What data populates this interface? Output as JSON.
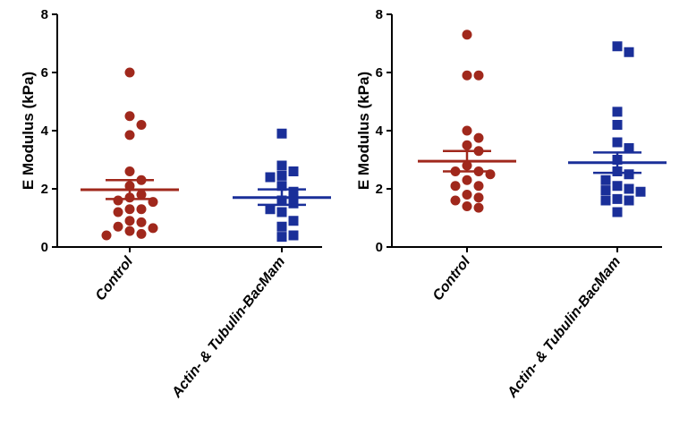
{
  "colors": {
    "control": "#a0281c",
    "treated": "#1a2f99"
  },
  "chart_data": [
    {
      "type": "scatter",
      "ylabel": "E Modulus (kPa)",
      "ylim": [
        0,
        8
      ],
      "yticks": [
        "0",
        "2",
        "4",
        "6",
        "8"
      ],
      "categories": [
        "Control",
        "Actin- & Tubulin-BacMam"
      ],
      "series": [
        {
          "name": "Control",
          "marker": "circle",
          "values": [
            6.0,
            4.5,
            4.2,
            3.85,
            2.6,
            2.3,
            2.1,
            1.8,
            1.7,
            1.6,
            1.55,
            1.3,
            1.3,
            1.2,
            0.9,
            0.85,
            0.7,
            0.65,
            0.55,
            0.45,
            0.4
          ],
          "mean": 1.97,
          "sem_upper": 2.3,
          "sem_lower": 1.65
        },
        {
          "name": "Actin- & Tubulin-BacMam",
          "marker": "square",
          "values": [
            3.9,
            2.8,
            2.6,
            2.45,
            2.4,
            2.1,
            1.9,
            1.6,
            1.5,
            1.3,
            1.2,
            0.9,
            0.7,
            0.4,
            0.35
          ],
          "mean": 1.7,
          "sem_upper": 1.98,
          "sem_lower": 1.45
        }
      ]
    },
    {
      "type": "scatter",
      "ylabel": "E Modulus (kPa)",
      "ylim": [
        0,
        8
      ],
      "yticks": [
        "0",
        "2",
        "4",
        "6",
        "8"
      ],
      "categories": [
        "Control",
        "Actin- & Tubulin-BacMam"
      ],
      "series": [
        {
          "name": "Control",
          "marker": "circle",
          "values": [
            7.3,
            5.9,
            5.9,
            4.0,
            3.75,
            3.5,
            3.3,
            2.8,
            2.6,
            2.6,
            2.5,
            2.3,
            2.1,
            2.1,
            1.8,
            1.7,
            1.6,
            1.4,
            1.35
          ],
          "mean": 2.95,
          "sem_upper": 3.3,
          "sem_lower": 2.6
        },
        {
          "name": "Actin- & Tubulin-BacMam",
          "marker": "square",
          "values": [
            6.9,
            6.7,
            4.65,
            4.2,
            3.6,
            3.4,
            3.0,
            2.6,
            2.5,
            2.3,
            2.1,
            2.0,
            1.95,
            1.9,
            1.65,
            1.6,
            1.6,
            1.2
          ],
          "mean": 2.9,
          "sem_upper": 3.25,
          "sem_lower": 2.55
        }
      ]
    }
  ]
}
